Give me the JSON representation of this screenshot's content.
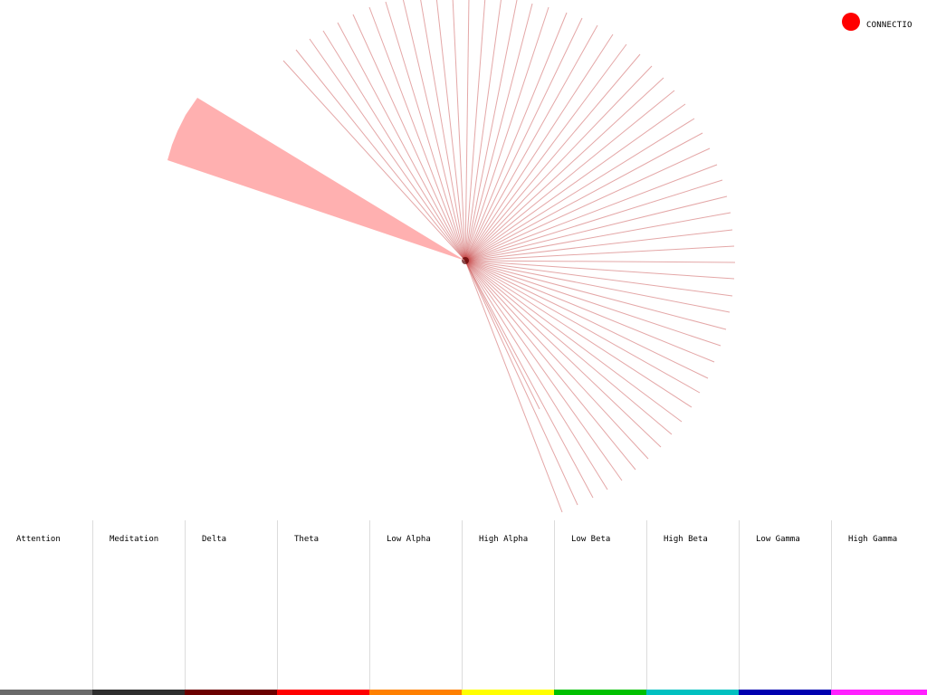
{
  "status": {
    "label": "CONNECTIO",
    "dot_color": "#ff0000"
  },
  "visualization": {
    "line_color": "#c43c3c",
    "wedge_color": "#ffb0b0"
  },
  "bands": [
    {
      "label": "Attention",
      "color": "#6a6a6a"
    },
    {
      "label": "Meditation",
      "color": "#2e2e2e"
    },
    {
      "label": "Delta",
      "color": "#6b0000"
    },
    {
      "label": "Theta",
      "color": "#ff0000"
    },
    {
      "label": "Low Alpha",
      "color": "#ff8000"
    },
    {
      "label": "High Alpha",
      "color": "#ffff00"
    },
    {
      "label": "Low Beta",
      "color": "#00c000"
    },
    {
      "label": "High Beta",
      "color": "#00c0c0"
    },
    {
      "label": "Low Gamma",
      "color": "#0000b0"
    },
    {
      "label": "High Gamma",
      "color": "#ff20ff"
    }
  ]
}
